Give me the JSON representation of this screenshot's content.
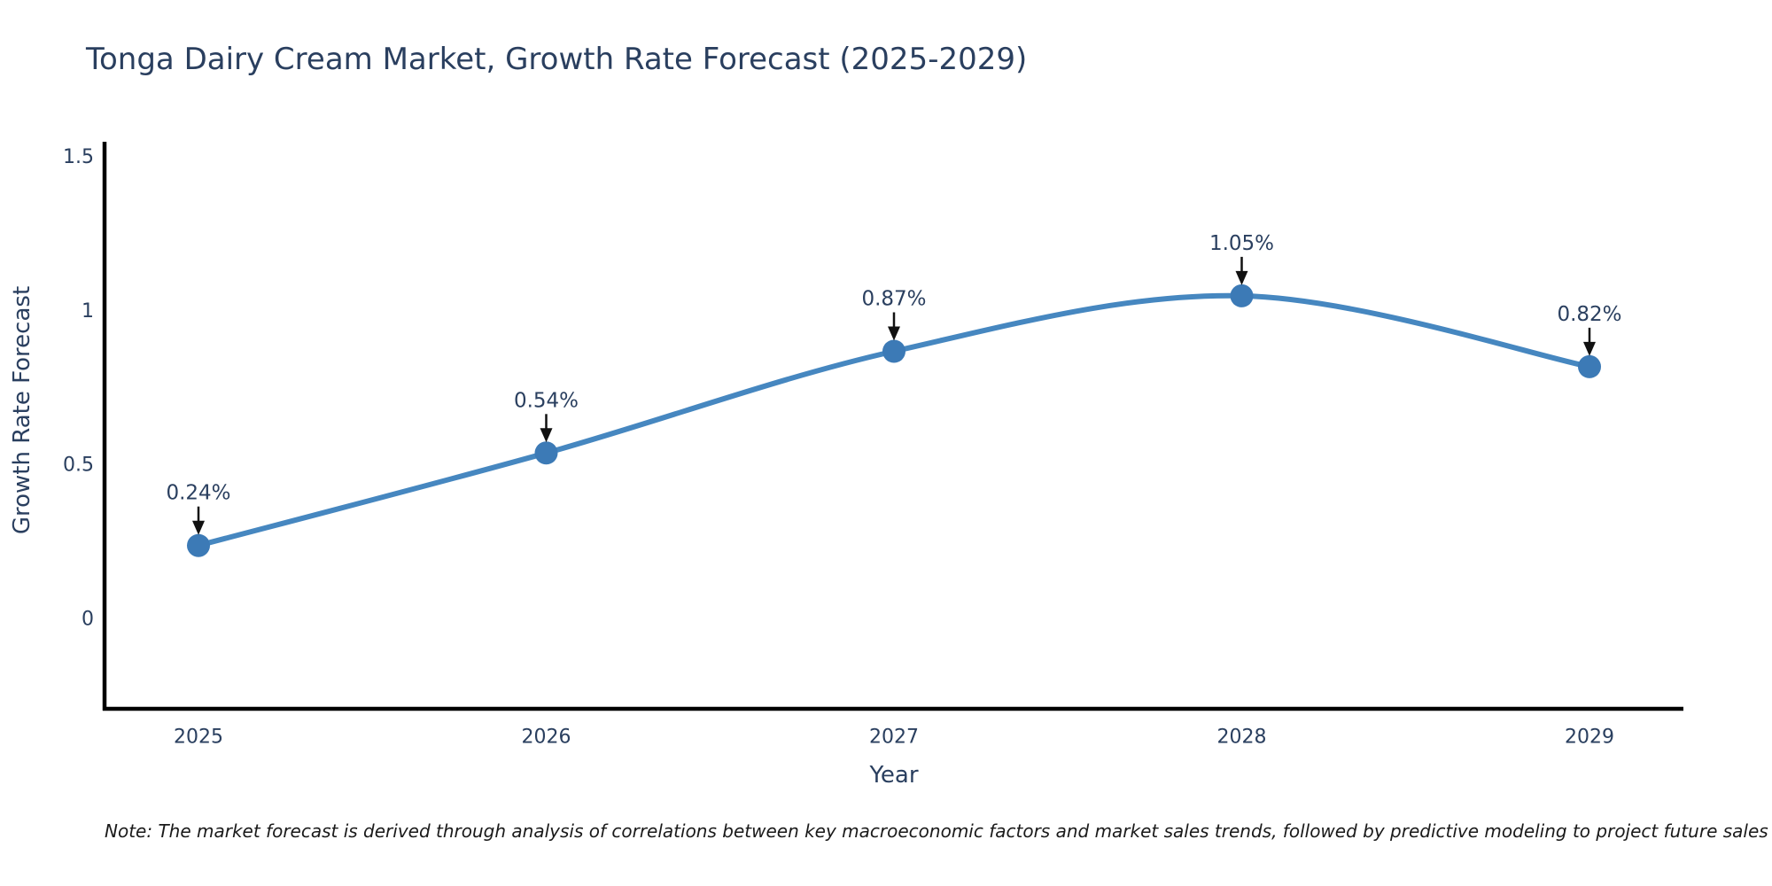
{
  "note": {
    "text": "Note: The market forecast is derived through analysis of correlations between key macroeconomic factors and market sales trends, followed by predictive modeling to project future sales"
  },
  "chart_data": {
    "type": "line",
    "title": "Tonga Dairy Cream Market, Growth Rate Forecast (2025-2029)",
    "xlabel": "Year",
    "ylabel": "Growth Rate Forecast",
    "x": [
      2025,
      2026,
      2027,
      2028,
      2029
    ],
    "values": [
      0.24,
      0.54,
      0.87,
      1.05,
      0.82
    ],
    "point_labels": [
      "0.24%",
      "0.54%",
      "0.87%",
      "1.05%",
      "0.82%"
    ],
    "xtick_labels": [
      "2025",
      "2026",
      "2027",
      "2028",
      "2029"
    ],
    "yticks": [
      0,
      0.5,
      1,
      1.5
    ],
    "ytick_labels": [
      "0",
      "0.5",
      "1",
      "1.5"
    ],
    "xlim": [
      2024.73,
      2029.27
    ],
    "ylim": [
      -0.29,
      1.55
    ],
    "line_shape": "spline",
    "grid": false,
    "legend": false,
    "colors": {
      "line": "#4687c0",
      "marker": "#3c7ab6",
      "axis": "#000000",
      "tick_text": "#2a3f5f",
      "annotation_text": "#2a3f5f",
      "arrow": "#111111",
      "title_text": "#2a3f5f",
      "background": "#ffffff"
    }
  }
}
